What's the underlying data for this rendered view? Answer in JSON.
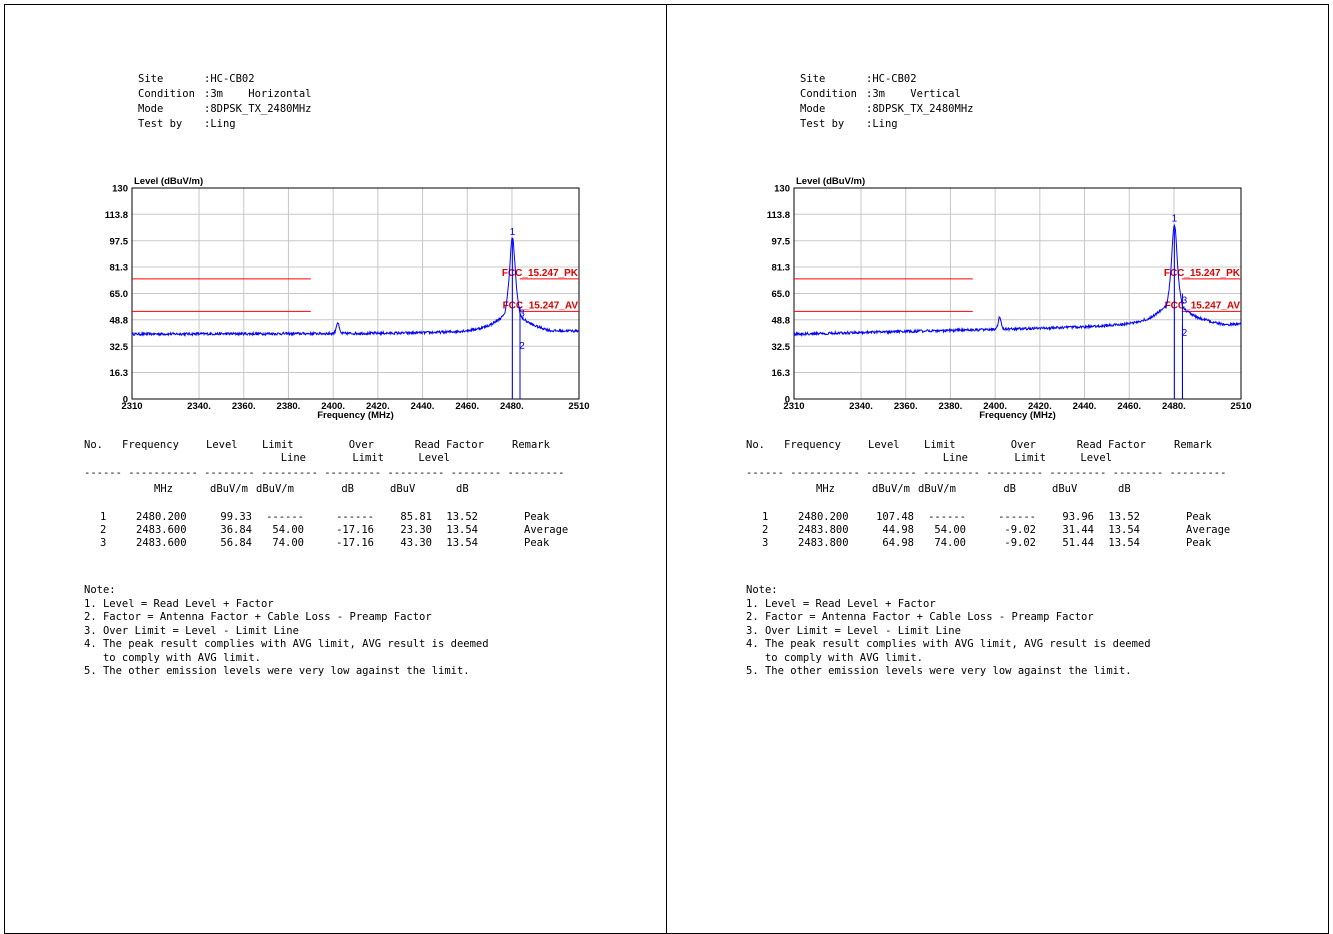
{
  "panels": [
    {
      "header": {
        "site_label": "Site",
        "site": ":HC-CB02",
        "cond_label": "Condition",
        "cond": ":3m    Horizontal",
        "mode_label": "Mode",
        "mode": ":8DPSK_TX_2480MHz",
        "test_label": "Test by",
        "test": ":Ling"
      },
      "table": {
        "headers": {
          "no": "No.",
          "freq": "Frequency",
          "level": "Level",
          "limit1": "Limit",
          "limit2": "Line",
          "over1": "Over",
          "over2": "Limit",
          "read1": "Read",
          "read2": "Level",
          "factor": "Factor",
          "remark": "Remark"
        },
        "separator": "------ ----------- -------- --------- --------- --------- -------- ---------",
        "units": {
          "freq": "MHz",
          "level": "dBuV/m",
          "limit": "dBuV/m",
          "over": "dB",
          "read": "dBuV",
          "factor": "dB"
        },
        "rows": [
          {
            "no": "1",
            "freq": "2480.200",
            "level": "99.33",
            "limit": "------",
            "over": "------",
            "read": "85.81",
            "factor": "13.52",
            "remark": "Peak"
          },
          {
            "no": "2",
            "freq": "2483.600",
            "level": "36.84",
            "limit": "54.00",
            "over": "-17.16",
            "read": "23.30",
            "factor": "13.54",
            "remark": "Average"
          },
          {
            "no": "3",
            "freq": "2483.600",
            "level": "56.84",
            "limit": "74.00",
            "over": "-17.16",
            "read": "43.30",
            "factor": "13.54",
            "remark": "Peak"
          }
        ]
      }
    },
    {
      "header": {
        "site_label": "Site",
        "site": ":HC-CB02",
        "cond_label": "Condition",
        "cond": ":3m    Vertical",
        "mode_label": "Mode",
        "mode": ":8DPSK_TX_2480MHz",
        "test_label": "Test by",
        "test": ":Ling"
      },
      "table": {
        "headers": {
          "no": "No.",
          "freq": "Frequency",
          "level": "Level",
          "limit1": "Limit",
          "limit2": "Line",
          "over1": "Over",
          "over2": "Limit",
          "read1": "Read",
          "read2": "Level",
          "factor": "Factor",
          "remark": "Remark"
        },
        "separator": "------ ----------- -------- --------- --------- --------- -------- ---------",
        "units": {
          "freq": "MHz",
          "level": "dBuV/m",
          "limit": "dBuV/m",
          "over": "dB",
          "read": "dBuV",
          "factor": "dB"
        },
        "rows": [
          {
            "no": "1",
            "freq": "2480.200",
            "level": "107.48",
            "limit": "------",
            "over": "------",
            "read": "93.96",
            "factor": "13.52",
            "remark": "Peak"
          },
          {
            "no": "2",
            "freq": "2483.800",
            "level": "44.98",
            "limit": "54.00",
            "over": "-9.02",
            "read": "31.44",
            "factor": "13.54",
            "remark": "Average"
          },
          {
            "no": "3",
            "freq": "2483.800",
            "level": "64.98",
            "limit": "74.00",
            "over": "-9.02",
            "read": "51.44",
            "factor": "13.54",
            "remark": "Peak"
          }
        ]
      }
    }
  ],
  "notes": [
    "Note:",
    "1. Level = Read Level + Factor",
    "2. Factor = Antenna Factor + Cable Loss - Preamp Factor",
    "3. Over Limit = Level - Limit Line",
    "4. The peak result complies with AVG limit, AVG result is deemed",
    "   to comply with AVG limit.",
    "5. The other emission levels were very low against the limit."
  ],
  "chart_data": [
    {
      "type": "line",
      "ylabel": "Level (dBuV/m)",
      "xlabel": "Frequency (MHz)",
      "xlim": [
        2310,
        2510
      ],
      "ylim": [
        0,
        130
      ],
      "yticks": [
        "0",
        "16.3",
        "32.5",
        "48.8",
        "65.0",
        "81.3",
        "97.5",
        "113.8",
        "130"
      ],
      "xticks": [
        "2310",
        "2340.",
        "2360.",
        "2380.",
        "2400.",
        "2420.",
        "2440.",
        "2460.",
        "2480.",
        "2510"
      ],
      "limit_lines": [
        {
          "name": "FCC_15.247_PK",
          "value": 74,
          "segments": [
            [
              2310,
              2390
            ],
            [
              2483.5,
              2510
            ]
          ]
        },
        {
          "name": "FCC_15.247_AV",
          "value": 54,
          "segments": [
            [
              2310,
              2390
            ],
            [
              2483.5,
              2510
            ]
          ]
        }
      ],
      "trace": {
        "baseline_start": 40,
        "baseline_end": 40.5,
        "bump_x": 2402,
        "bump_peak": 47,
        "peak_x": 2480.2,
        "peak_value": 99.33,
        "shoulder_value": 54,
        "tail_end": 42
      },
      "markers": [
        {
          "label": "1",
          "x": 2480.2,
          "y": 99.33
        },
        {
          "label": "2",
          "x": 2483.6,
          "y": 36.84
        },
        {
          "label": "3",
          "x": 2483.6,
          "y": 56.84
        }
      ],
      "grid": true,
      "colors": {
        "trace": "#0000ff",
        "limit": "#ff0000",
        "grid": "#c8c8c8"
      }
    },
    {
      "type": "line",
      "ylabel": "Level (dBuV/m)",
      "xlabel": "Frequency (MHz)",
      "xlim": [
        2310,
        2510
      ],
      "ylim": [
        0,
        130
      ],
      "yticks": [
        "0",
        "16.3",
        "32.5",
        "48.8",
        "65.0",
        "81.3",
        "97.5",
        "113.8",
        "130"
      ],
      "xticks": [
        "2310",
        "2340.",
        "2360.",
        "2380.",
        "2400.",
        "2420.",
        "2440.",
        "2460.",
        "2480.",
        "2510"
      ],
      "limit_lines": [
        {
          "name": "FCC_15.247_PK",
          "value": 74,
          "segments": [
            [
              2310,
              2390
            ],
            [
              2483.5,
              2510
            ]
          ]
        },
        {
          "name": "FCC_15.247_AV",
          "value": 54,
          "segments": [
            [
              2310,
              2390
            ],
            [
              2483.5,
              2510
            ]
          ]
        }
      ],
      "trace": {
        "baseline_start": 40,
        "baseline_end": 46,
        "bump_x": 2402,
        "bump_peak": 50,
        "peak_x": 2480.2,
        "peak_value": 107.48,
        "shoulder_value": 60,
        "tail_end": 46
      },
      "markers": [
        {
          "label": "1",
          "x": 2480.2,
          "y": 107.48
        },
        {
          "label": "2",
          "x": 2483.8,
          "y": 44.98
        },
        {
          "label": "3",
          "x": 2483.8,
          "y": 64.98
        }
      ],
      "grid": true,
      "colors": {
        "trace": "#0000ff",
        "limit": "#ff0000",
        "grid": "#c8c8c8"
      }
    }
  ]
}
